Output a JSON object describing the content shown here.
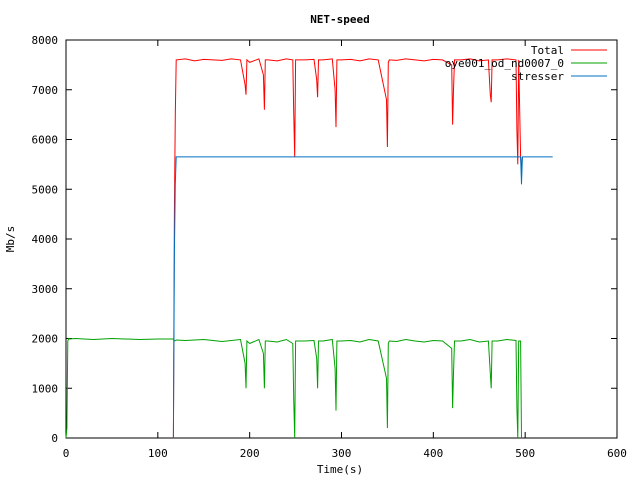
{
  "chart_data": {
    "type": "line",
    "title": "NET-speed",
    "xlabel": "Time(s)",
    "ylabel": "Mb/s",
    "xlim": [
      0,
      600
    ],
    "ylim": [
      0,
      8000
    ],
    "x_ticks": [
      0,
      100,
      200,
      300,
      400,
      500,
      600
    ],
    "y_ticks": [
      0,
      1000,
      2000,
      3000,
      4000,
      5000,
      6000,
      7000,
      8000
    ],
    "grid": false,
    "legend_position": "top-right",
    "series": [
      {
        "name": "Total",
        "color": "#ff0000",
        "x": [
          117,
          118,
          119,
          120,
          130,
          140,
          150,
          160,
          170,
          180,
          190,
          195,
          196,
          197,
          200,
          210,
          215,
          216,
          217,
          220,
          230,
          240,
          247,
          248,
          249,
          250,
          260,
          270,
          273,
          274,
          275,
          280,
          290,
          293,
          294,
          295,
          300,
          310,
          320,
          330,
          340,
          349,
          350,
          351,
          352,
          360,
          370,
          380,
          390,
          400,
          410,
          420,
          421,
          422,
          423,
          430,
          440,
          450,
          460,
          462,
          463,
          464,
          470,
          480,
          490,
          491,
          492,
          493,
          495,
          496,
          497
        ],
        "y": [
          0,
          4550,
          6500,
          7600,
          7620,
          7580,
          7610,
          7600,
          7590,
          7620,
          7600,
          7100,
          6900,
          7600,
          7550,
          7620,
          7300,
          6600,
          7600,
          7600,
          7580,
          7620,
          7600,
          6550,
          5650,
          7600,
          7600,
          7610,
          7200,
          6850,
          7600,
          7600,
          7620,
          7000,
          6250,
          7600,
          7600,
          7610,
          7580,
          7620,
          7600,
          6800,
          5850,
          7550,
          7600,
          7590,
          7620,
          7600,
          7580,
          7610,
          7600,
          7500,
          6300,
          7000,
          7600,
          7600,
          7620,
          7580,
          7600,
          6900,
          6750,
          7600,
          7600,
          7620,
          7600,
          6200,
          5500,
          7600,
          5650,
          5400,
          5650
        ]
      },
      {
        "name": "oye001_od_nd0007_0",
        "color": "#00a000",
        "x": [
          0,
          1,
          2,
          3,
          4,
          10,
          30,
          50,
          80,
          100,
          117,
          118,
          120,
          130,
          150,
          170,
          190,
          195,
          196,
          197,
          200,
          210,
          215,
          216,
          217,
          220,
          230,
          240,
          247,
          248,
          249,
          250,
          260,
          270,
          273,
          274,
          275,
          280,
          290,
          293,
          294,
          295,
          300,
          310,
          320,
          330,
          340,
          349,
          350,
          351,
          352,
          360,
          370,
          380,
          390,
          400,
          410,
          420,
          421,
          422,
          423,
          430,
          440,
          450,
          460,
          462,
          463,
          464,
          470,
          480,
          490,
          491,
          492,
          493,
          495,
          496
        ],
        "y": [
          0,
          200,
          1950,
          2000,
          1990,
          2000,
          1980,
          2000,
          1980,
          1990,
          1990,
          1950,
          1970,
          1960,
          1980,
          1940,
          1980,
          1500,
          1000,
          1950,
          1900,
          1980,
          1700,
          1000,
          1950,
          1950,
          1930,
          1980,
          1900,
          800,
          0,
          1950,
          1950,
          1960,
          1600,
          1000,
          1950,
          1950,
          1980,
          1400,
          550,
          1950,
          1950,
          1960,
          1930,
          1980,
          1950,
          1200,
          200,
          1900,
          1950,
          1940,
          1980,
          1950,
          1930,
          1960,
          1950,
          1800,
          600,
          1300,
          1950,
          1950,
          1980,
          1930,
          1950,
          1300,
          1000,
          1950,
          1950,
          1980,
          1960,
          600,
          0,
          1950,
          1950,
          0
        ]
      },
      {
        "name": "stresser",
        "color": "#0070c0",
        "x": [
          117,
          118,
          119,
          120,
          200,
          300,
          400,
          495,
          496,
          497,
          530
        ],
        "y": [
          0,
          3700,
          5100,
          5650,
          5650,
          5650,
          5650,
          5650,
          5100,
          5650,
          5650
        ]
      }
    ]
  }
}
